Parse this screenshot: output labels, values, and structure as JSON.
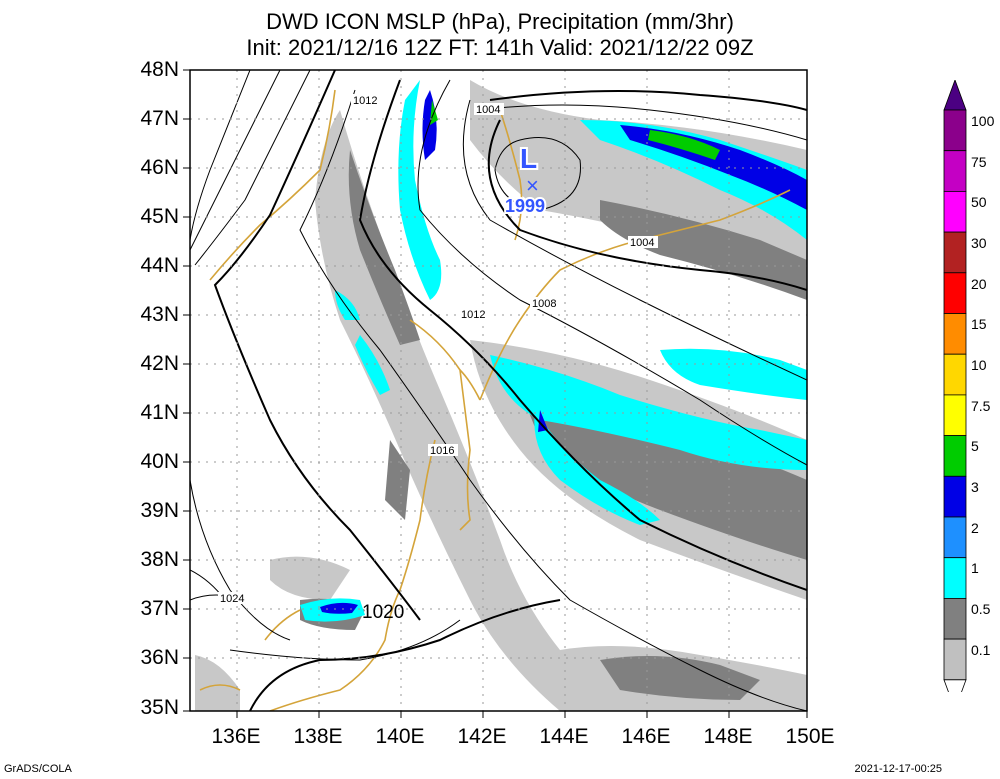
{
  "title": {
    "line1": "DWD ICON MSLP (hPa), Precipitation (mm/3hr)",
    "line2": "Init: 2021/12/16 12Z  FT: 141h  Valid: 2021/12/22 09Z"
  },
  "axes": {
    "lat_labels": [
      "48N",
      "47N",
      "46N",
      "45N",
      "44N",
      "43N",
      "42N",
      "41N",
      "40N",
      "39N",
      "38N",
      "37N",
      "36N",
      "35N"
    ],
    "lon_labels": [
      "136E",
      "138E",
      "140E",
      "142E",
      "144E",
      "146E",
      "148E",
      "150E"
    ]
  },
  "isobar_labels": [
    "1012",
    "1004",
    "1004",
    "1008",
    "1012",
    "1016",
    "1024",
    "1020"
  ],
  "low_center": {
    "symbol": "L",
    "marker": "×",
    "pressure": "1999"
  },
  "colorbar": {
    "labels": [
      "100",
      "75",
      "50",
      "30",
      "20",
      "15",
      "10",
      "7.5",
      "5",
      "3",
      "2",
      "1",
      "0.5",
      "0.1"
    ],
    "colors": [
      "#4b0082",
      "#8b008b",
      "#c400c4",
      "#ff00ff",
      "#b22222",
      "#ff0000",
      "#ff8c00",
      "#ffd700",
      "#ffff00",
      "#00cc00",
      "#0000e6",
      "#1e90ff",
      "#00ffff",
      "#808080",
      "#c0c0c0"
    ]
  },
  "footer": {
    "left": "GrADS/COLA",
    "right": "2021-12-17-00:25"
  }
}
